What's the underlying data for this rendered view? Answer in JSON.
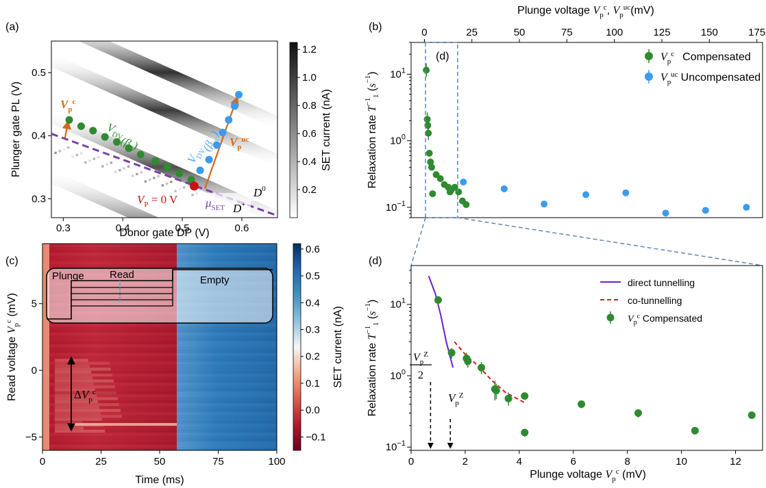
{
  "chart_data": [
    {
      "panel": "(a)",
      "type": "heatmap",
      "xlabel": "Donor gate DP (V)",
      "ylabel": "Plunger gate PL (V)",
      "xlim": [
        0.28,
        0.66
      ],
      "ylim": [
        0.27,
        0.55
      ],
      "xticks": [
        "0.3",
        "0.4",
        "0.5",
        "0.6"
      ],
      "yticks": [
        "0.3",
        "0.4",
        "0.5"
      ],
      "colorbar": {
        "label": "SET current (nA)",
        "range": [
          0.0,
          1.25
        ],
        "ticks": [
          "0.2",
          "0.4",
          "0.6",
          "0.8",
          "1.0",
          "1.2"
        ]
      },
      "colors": {
        "compensated": "#2e8b2e",
        "uncompensated": "#3b9bf0",
        "arrow": "#d2691e",
        "line": "#7b3fa8",
        "origin": "#cc1111"
      },
      "annotations": {
        "vp_c": "Vp^c",
        "vdv_bc": "VDV(βc)",
        "vdv_buc": "VDV(βuc)",
        "vp_uc": "Vp^uc",
        "vp_zero": "VP = 0 V",
        "mu_set": "μSET",
        "d0": "D0",
        "dplus": "D+"
      },
      "compensated_points": [
        [
          0.31,
          0.425
        ],
        [
          0.33,
          0.415
        ],
        [
          0.35,
          0.408
        ],
        [
          0.37,
          0.398
        ],
        [
          0.39,
          0.39
        ],
        [
          0.41,
          0.38
        ],
        [
          0.43,
          0.37
        ],
        [
          0.455,
          0.36
        ],
        [
          0.475,
          0.35
        ],
        [
          0.495,
          0.34
        ],
        [
          0.515,
          0.33
        ]
      ],
      "uncompensated_points": [
        [
          0.53,
          0.345
        ],
        [
          0.545,
          0.362
        ],
        [
          0.558,
          0.385
        ],
        [
          0.568,
          0.405
        ],
        [
          0.578,
          0.425
        ],
        [
          0.588,
          0.447
        ],
        [
          0.595,
          0.465
        ]
      ],
      "origin_point": [
        0.52,
        0.32
      ]
    },
    {
      "panel": "(b)",
      "type": "scatter",
      "xlabel": "Plunge voltage Vp^c, Vp^uc (mV)",
      "ylabel": "Relaxation rate T1^-1 (s^-1)",
      "xlim": [
        -7,
        178
      ],
      "ylim_log": [
        0.07,
        30
      ],
      "xticks": [
        "0",
        "25",
        "50",
        "75",
        "100",
        "125",
        "150",
        "175"
      ],
      "yticks": [
        "10^-1",
        "10^0",
        "10^1"
      ],
      "inset_label": "(d)",
      "series": [
        {
          "name": "Vp^c",
          "description": "Compensated",
          "color": "#2e8b2e",
          "points": [
            [
              1.0,
              11.5
            ],
            [
              1.5,
              2.1
            ],
            [
              1.8,
              1.7
            ],
            [
              2.1,
              1.3
            ],
            [
              2.6,
              0.65
            ],
            [
              3.2,
              0.48
            ],
            [
              3.8,
              0.4
            ],
            [
              4.3,
              0.16
            ],
            [
              6.2,
              0.31
            ],
            [
              8.4,
              0.27
            ],
            [
              10.5,
              0.22
            ],
            [
              12.6,
              0.2
            ],
            [
              13.5,
              0.17
            ],
            [
              14.0,
              0.18
            ],
            [
              16.0,
              0.2
            ],
            [
              18.0,
              0.17
            ],
            [
              20.0,
              0.125
            ],
            [
              22.0,
              0.11
            ]
          ]
        },
        {
          "name": "Vp^uc",
          "description": "Uncompensated",
          "color": "#3b9bf0",
          "points": [
            [
              20.5,
              0.24
            ],
            [
              42.0,
              0.19
            ],
            [
              63.0,
              0.112
            ],
            [
              85.0,
              0.155
            ],
            [
              106.0,
              0.165
            ],
            [
              127.0,
              0.082
            ],
            [
              148.0,
              0.09
            ],
            [
              169.5,
              0.1
            ]
          ]
        }
      ]
    },
    {
      "panel": "(c)",
      "type": "heatmap",
      "xlabel": "Time (ms)",
      "ylabel": "Read voltage Vp^c (mV)",
      "xlim": [
        0,
        100
      ],
      "ylim": [
        -6,
        9.5
      ],
      "xticks": [
        "0",
        "25",
        "50",
        "75",
        "100"
      ],
      "yticks": [
        "-5",
        "0",
        "5"
      ],
      "colorbar": {
        "label": "SET current (nA)",
        "range": [
          -0.15,
          0.62
        ],
        "ticks": [
          "-0.1",
          "0.0",
          "0.1",
          "0.2",
          "0.3",
          "0.4",
          "0.5",
          "0.6"
        ]
      },
      "phases": [
        "Plunge",
        "Read",
        "Empty"
      ],
      "annotation": "ΔVp^c"
    },
    {
      "panel": "(d)",
      "type": "scatter",
      "xlabel": "Plunge voltage Vp^c (mV)",
      "ylabel": "Relaxation rate T1^-1 (s^-1)",
      "xlim": [
        0,
        13
      ],
      "ylim_log": [
        0.09,
        35
      ],
      "xticks": [
        "0",
        "2",
        "4",
        "6",
        "8",
        "10",
        "12"
      ],
      "yticks": [
        "10^-1",
        "10^0",
        "10^1"
      ],
      "annotations": {
        "vpz_half_num": "Vp^Z",
        "vpz_half_den": "2",
        "vpz": "Vp^Z"
      },
      "markers": {
        "vpz_half": 0.72,
        "vpz": 1.45
      },
      "series": [
        {
          "name": "Vp^c Compensated",
          "color": "#2e8b2e",
          "points": [
            [
              1.0,
              11.5,
              1.6
            ],
            [
              1.5,
              2.1,
              0.35
            ],
            [
              2.05,
              1.75,
              0.35
            ],
            [
              2.1,
              1.6,
              0.3
            ],
            [
              2.6,
              1.3,
              0.25
            ],
            [
              3.1,
              0.65,
              0.2
            ],
            [
              3.15,
              0.62,
              0.15
            ],
            [
              3.6,
              0.48,
              0.1
            ],
            [
              4.2,
              0.52,
              0.05
            ],
            [
              4.2,
              0.16,
              0.02
            ],
            [
              6.3,
              0.4,
              0.05
            ],
            [
              8.4,
              0.3,
              0.04
            ],
            [
              10.5,
              0.17,
              0.02
            ],
            [
              12.6,
              0.28,
              0.03
            ]
          ]
        },
        {
          "name": "direct tunnelling",
          "type": "line",
          "color": "#6a1fd8",
          "points": [
            [
              0.65,
              25
            ],
            [
              0.9,
              14
            ],
            [
              1.1,
              7
            ],
            [
              1.3,
              3
            ],
            [
              1.55,
              1.3
            ]
          ]
        },
        {
          "name": "co-tunnelling",
          "type": "line",
          "dashed": true,
          "color": "#d02020",
          "points": [
            [
              1.6,
              3.0
            ],
            [
              2.0,
              2.0
            ],
            [
              2.5,
              1.35
            ],
            [
              3.0,
              0.85
            ],
            [
              3.5,
              0.58
            ],
            [
              4.2,
              0.42
            ]
          ]
        }
      ]
    }
  ]
}
